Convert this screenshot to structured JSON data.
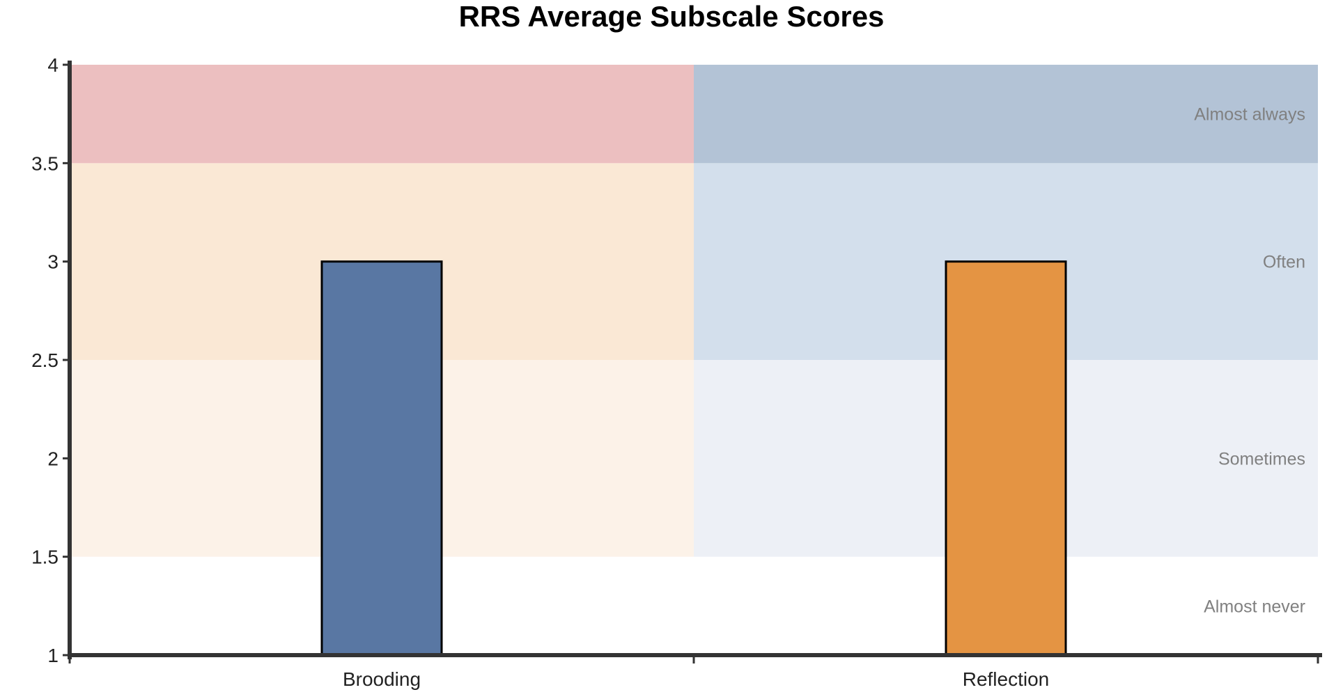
{
  "chart_data": {
    "type": "bar",
    "title": "RRS Average Subscale Scores",
    "xlabel": "",
    "ylabel": "",
    "categories": [
      "Brooding",
      "Reflection"
    ],
    "values": [
      3,
      3
    ],
    "bar_colors": [
      "#5977a3",
      "#e49443"
    ],
    "ylim": [
      1,
      4
    ],
    "yticks": [
      "1",
      "1.5",
      "2",
      "2.5",
      "3",
      "3.5",
      "4"
    ],
    "grid": false,
    "bands": [
      {
        "label": "Almost never",
        "from": 1,
        "to": 1.5,
        "colors": [
          "#ffffff",
          "#ffffff"
        ]
      },
      {
        "label": "Sometimes",
        "from": 1.5,
        "to": 2.5,
        "colors": [
          "#fcf2e8",
          "#edf0f6"
        ]
      },
      {
        "label": "Often",
        "from": 2.5,
        "to": 3.5,
        "colors": [
          "#fae8d5",
          "#d3dfec"
        ]
      },
      {
        "label": "Almost always",
        "from": 3.5,
        "to": 4,
        "colors": [
          "#ecbfc0",
          "#b3c3d6"
        ]
      }
    ]
  }
}
